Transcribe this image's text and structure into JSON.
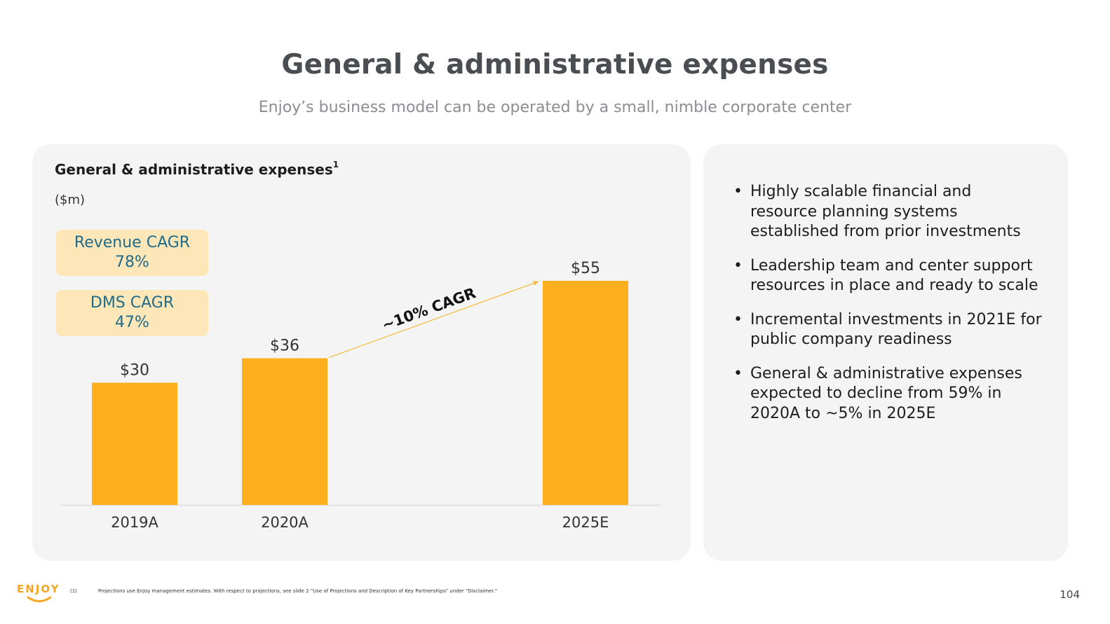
{
  "title": "General & administrative expenses",
  "subtitle": "Enjoy’s business model can be operated by a small, nimble corporate center",
  "chart_panel": {
    "heading": "General & administrative expenses",
    "heading_sup": "1",
    "unit": "($m)",
    "revenue_cagr": {
      "label": "Revenue CAGR",
      "value": "78%"
    },
    "dms_cagr": {
      "label": "DMS CAGR",
      "value": "47%"
    }
  },
  "chart_data": {
    "type": "bar",
    "title": "General & administrative expenses",
    "ylabel": "($m)",
    "categories": [
      "2019A",
      "2020A",
      "2025E"
    ],
    "values": [
      30,
      36,
      55
    ],
    "value_labels": [
      "$30",
      "$36",
      "$55"
    ],
    "ylim": [
      0,
      55
    ],
    "annotation": "~10% CAGR",
    "bar_color": "#fdaf1e",
    "arrow_color": "#f6b93b",
    "grid": false
  },
  "bullets": [
    "Highly scalable financial and resource planning systems established from prior investments",
    "Leadership team and center support resources in place and ready to scale",
    "Incremental investments in 2021E for public company readiness",
    "General & administrative expenses expected to decline from 59% in 2020A to ~5% in 2025E"
  ],
  "bullet_symbol": "•",
  "footer": {
    "logo": "ENJOY",
    "footnote_number": "(1)",
    "footnote": "Projections use Enjoy management estimates. With respect to projections, see slide 2 \"Use of Projections and Description of Key Partnerships\" under \"Disclaimer.\"",
    "page_number": "104"
  },
  "colors": {
    "accent": "#fdaf1e",
    "cagr_box_bg": "#fde6b8",
    "cagr_text": "#1f6b8a",
    "panel_bg": "#f4f4f5"
  }
}
